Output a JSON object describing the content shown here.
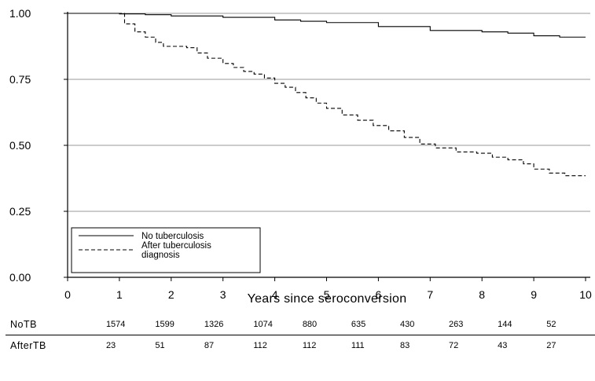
{
  "chart_data": {
    "type": "line",
    "title": "",
    "xlabel": "Years since seroconversion",
    "ylabel": "",
    "xlim": [
      0,
      10
    ],
    "ylim": [
      0,
      1
    ],
    "x_ticks": [
      "0",
      "1",
      "2",
      "3",
      "4",
      "5",
      "6",
      "7",
      "8",
      "9",
      "10"
    ],
    "y_ticks": [
      "0.00",
      "0.25",
      "0.50",
      "0.75",
      "1.00"
    ],
    "y_grid": true,
    "legend_position": "bottom-left",
    "series": [
      {
        "name": "No tuberculosis",
        "style": "solid",
        "x": [
          0,
          0.5,
          1.0,
          1.5,
          2.0,
          3.0,
          4.0,
          4.5,
          5.0,
          6.0,
          7.0,
          8.0,
          8.5,
          9.0,
          9.5,
          10.0
        ],
        "y": [
          1.0,
          1.0,
          0.998,
          0.995,
          0.99,
          0.985,
          0.975,
          0.97,
          0.965,
          0.95,
          0.935,
          0.93,
          0.925,
          0.915,
          0.91,
          0.91
        ]
      },
      {
        "name": "After tuberculosis diagnosis",
        "style": "dashed",
        "x": [
          0,
          0.9,
          1.1,
          1.3,
          1.5,
          1.7,
          1.85,
          2.0,
          2.3,
          2.5,
          2.7,
          3.0,
          3.2,
          3.4,
          3.6,
          3.8,
          4.0,
          4.2,
          4.4,
          4.6,
          4.8,
          5.0,
          5.3,
          5.6,
          5.9,
          6.2,
          6.5,
          6.8,
          7.1,
          7.5,
          7.9,
          8.2,
          8.5,
          8.8,
          9.0,
          9.3,
          9.6,
          10.0
        ],
        "y": [
          1.0,
          1.0,
          0.96,
          0.93,
          0.91,
          0.89,
          0.875,
          0.875,
          0.87,
          0.85,
          0.83,
          0.81,
          0.795,
          0.78,
          0.77,
          0.755,
          0.735,
          0.72,
          0.7,
          0.68,
          0.66,
          0.64,
          0.615,
          0.595,
          0.575,
          0.555,
          0.53,
          0.505,
          0.49,
          0.475,
          0.47,
          0.455,
          0.445,
          0.43,
          0.41,
          0.395,
          0.385,
          0.385
        ]
      }
    ],
    "legend": [
      {
        "label": "No tuberculosis",
        "style": "solid"
      },
      {
        "label": "After tuberculosis\ndiagnosis",
        "style": "dashed"
      }
    ]
  },
  "risk_table": {
    "rows": [
      {
        "label": "NoTB",
        "values": [
          "1574",
          "1599",
          "1326",
          "1074",
          "880",
          "635",
          "430",
          "263",
          "144",
          "52"
        ]
      },
      {
        "label": "AfterTB",
        "values": [
          "23",
          "51",
          "87",
          "112",
          "112",
          "111",
          "83",
          "72",
          "43",
          "27"
        ]
      }
    ]
  }
}
